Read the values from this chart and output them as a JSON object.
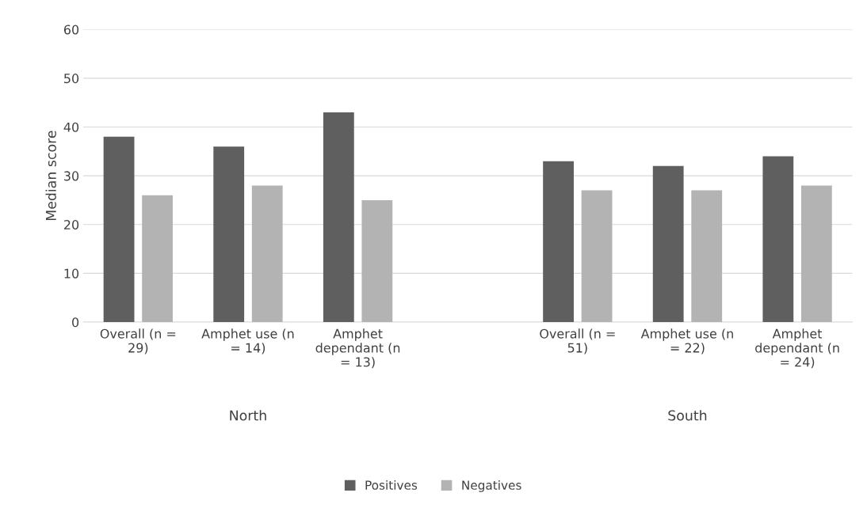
{
  "chart_data": {
    "type": "bar",
    "ylabel": "Median score",
    "categories": [
      "Overall (n = 29)",
      "Amphet use (n = 14)",
      "Amphet dependant (n = 13)",
      null,
      "Overall (n = 51)",
      "Amphet use (n = 22)",
      "Amphet dependant (n = 24)"
    ],
    "series": [
      {
        "name": "Positives",
        "color": "#5f5f5f",
        "values": [
          38,
          36,
          43,
          null,
          33,
          32,
          34
        ]
      },
      {
        "name": "Negatives",
        "color": "#b3b3b3",
        "values": [
          26,
          28,
          25,
          null,
          27,
          27,
          28
        ]
      }
    ],
    "annotations": [
      "North",
      "South"
    ],
    "ylim": [
      0,
      60
    ],
    "yticks": [
      0,
      10,
      20,
      30,
      40,
      50,
      60
    ],
    "grid": "y",
    "legend": "bottom"
  }
}
